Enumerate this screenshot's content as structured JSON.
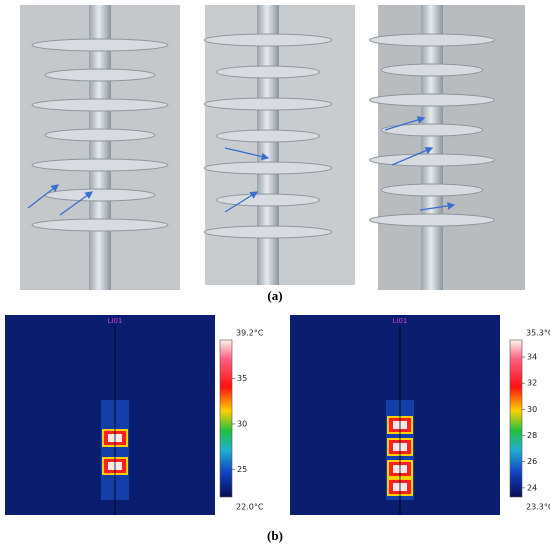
{
  "figure": {
    "panel_labels": {
      "a": "(a)",
      "b": "(b)"
    },
    "thermal_images": [
      {
        "spot_label": "Li01",
        "colorbar": {
          "ticks": [
            {
              "value": 39.2,
              "label": "39.2°C"
            },
            35,
            30,
            25,
            {
              "value": 22.0,
              "label": "22.0°C"
            }
          ]
        }
      },
      {
        "spot_label": "Li01",
        "colorbar": {
          "ticks": [
            {
              "value": 35.3,
              "label": "35.3°C"
            },
            34,
            32,
            30,
            28,
            26,
            24,
            {
              "value": 23.3,
              "label": "23.3°C"
            }
          ]
        }
      }
    ]
  }
}
